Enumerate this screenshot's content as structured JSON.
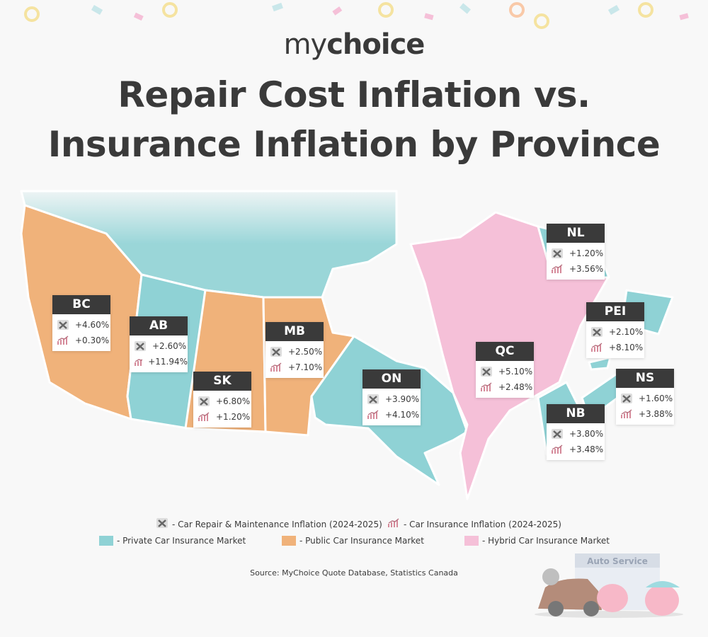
{
  "logo": {
    "light": "my",
    "bold": "choice"
  },
  "title": [
    "Repair Cost Inflation vs.",
    "Insurance Inflation by Province"
  ],
  "provinces": [
    {
      "code": "BC",
      "repair": "+4.60%",
      "insurance": "+0.30%",
      "color": "#f0b27a"
    },
    {
      "code": "AB",
      "repair": "+2.60%",
      "insurance": "+11.94%",
      "color": "#8fd2d5"
    },
    {
      "code": "SK",
      "repair": "+6.80%",
      "insurance": "+1.20%",
      "color": "#f0b27a"
    },
    {
      "code": "MB",
      "repair": "+2.50%",
      "insurance": "+7.10%",
      "color": "#f0b27a"
    },
    {
      "code": "ON",
      "repair": "+3.90%",
      "insurance": "+4.10%",
      "color": "#8fd2d5"
    },
    {
      "code": "QC",
      "repair": "+5.10%",
      "insurance": "+2.48%",
      "color": "#f5c0d8"
    },
    {
      "code": "NL",
      "repair": "+1.20%",
      "insurance": "+3.56%",
      "color": "#8fd2d5"
    },
    {
      "code": "PEI",
      "repair": "+2.10%",
      "insurance": "+8.10%",
      "color": "#8fd2d5"
    },
    {
      "code": "NS",
      "repair": "+1.60%",
      "insurance": "+3.88%",
      "color": "#8fd2d5"
    },
    {
      "code": "NB",
      "repair": "+3.80%",
      "insurance": "+3.48%",
      "color": "#8fd2d5"
    }
  ],
  "legend": {
    "icons": [
      "- Car Repair & Maintenance Inflation (2024-2025)",
      "- Car Insurance Inflation (2024-2025)"
    ],
    "markets": [
      {
        "label": "- Private Car Insurance Market",
        "color": "#8fd2d5"
      },
      {
        "label": "- Public Car Insurance Market",
        "color": "#f0b27a"
      },
      {
        "label": "- Hybrid Car Insurance Market",
        "color": "#f5c0d8"
      }
    ]
  },
  "source": "Source: MyChoice Quote Database, Statistics Canada",
  "illustration": {
    "sign": "Auto Service"
  }
}
